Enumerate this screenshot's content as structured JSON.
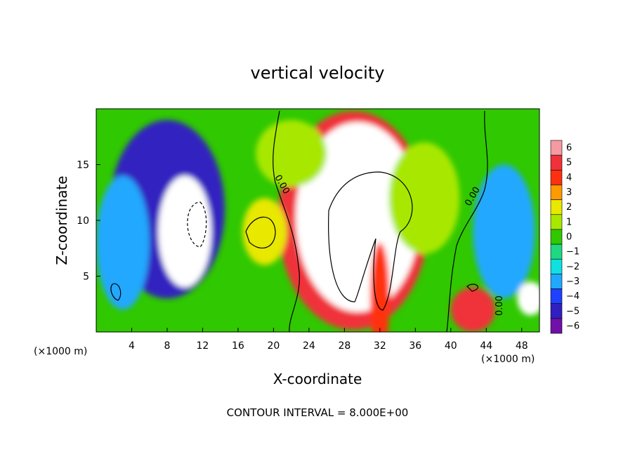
{
  "chart_data": {
    "type": "heatmap",
    "title": "vertical velocity",
    "xlabel": "X-coordinate",
    "ylabel": "Z-coordinate",
    "x_unit": "(×1000 m)",
    "z_unit": "(×1000 m)",
    "xlim": [
      0,
      50
    ],
    "ylim": [
      0,
      20
    ],
    "x_ticks": [
      4,
      8,
      12,
      16,
      20,
      24,
      28,
      32,
      36,
      40,
      44,
      48
    ],
    "y_ticks": [
      5,
      10,
      15
    ],
    "colorbar": {
      "levels": [
        6,
        5,
        4,
        3,
        2,
        1,
        0,
        -1,
        -2,
        -3,
        -4,
        -5,
        -6
      ],
      "colors": [
        "#f59aa2",
        "#f0303a",
        "#ff3010",
        "#ff9a00",
        "#e8e800",
        "#a8e800",
        "#30c800",
        "#20d880",
        "#10e0e0",
        "#20a8ff",
        "#2040ff",
        "#3020c0",
        "#7010a8"
      ]
    },
    "contour_interval": "CONTOUR INTERVAL = 8.000E+00",
    "contour_labels": [
      "0.00",
      "0.00",
      "0.00"
    ],
    "blobs": [
      {
        "x": 29,
        "z": 10,
        "rx": 8.5,
        "rz": 9.8,
        "value": 5
      },
      {
        "x": 29.5,
        "z": 10.3,
        "rx": 7,
        "rz": 8.5,
        "value": 9
      },
      {
        "x": 32,
        "z": 3,
        "rx": 1.1,
        "rz": 5,
        "value": 4
      },
      {
        "x": 8,
        "z": 11,
        "rx": 6.5,
        "rz": 8,
        "value": -5
      },
      {
        "x": 10,
        "z": 9,
        "rx": 3,
        "rz": 5,
        "value": -9
      },
      {
        "x": 3,
        "z": 8,
        "rx": 3,
        "rz": 6,
        "value": -3
      },
      {
        "x": 46,
        "z": 9,
        "rx": 3.5,
        "rz": 6,
        "value": -3
      },
      {
        "x": 42.5,
        "z": 2,
        "rx": 2.5,
        "rz": 2,
        "value": 5
      },
      {
        "x": 49,
        "z": 3,
        "rx": 1.5,
        "rz": 1.5,
        "value": -9
      },
      {
        "x": 19,
        "z": 9,
        "rx": 2.5,
        "rz": 3,
        "value": 1.5
      },
      {
        "x": 37,
        "z": 12,
        "rx": 4,
        "rz": 5,
        "value": 1
      },
      {
        "x": 22,
        "z": 16,
        "rx": 4,
        "rz": 3,
        "value": 0.5
      }
    ]
  }
}
